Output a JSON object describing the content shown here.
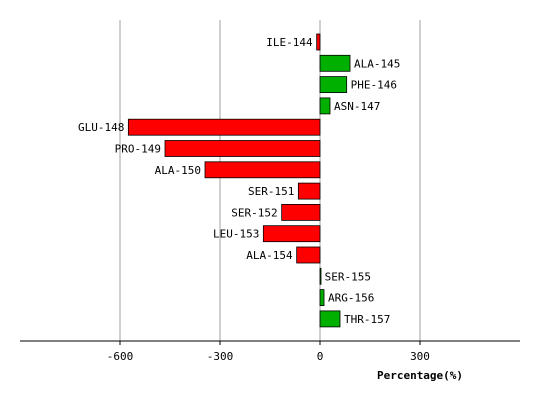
{
  "chart_data": {
    "type": "bar",
    "orientation": "horizontal",
    "title": "",
    "xlabel": "Percentage(%)",
    "ylabel": "",
    "xlim": [
      -900,
      600
    ],
    "xticks": [
      -600,
      -300,
      0,
      300
    ],
    "xtick_labels": [
      "-600",
      "-300",
      "0",
      "300"
    ],
    "grid": true,
    "categories": [
      "ILE-144",
      "ALA-145",
      "PHE-146",
      "ASN-147",
      "GLU-148",
      "PRO-149",
      "ALA-150",
      "SER-151",
      "SER-152",
      "LEU-153",
      "ALA-154",
      "SER-155",
      "ARG-156",
      "THR-157"
    ],
    "values": [
      -10,
      90,
      80,
      30,
      -575,
      -465,
      -345,
      -65,
      -115,
      -170,
      -70,
      2,
      12,
      60
    ],
    "colors": {
      "positive": "#00b000",
      "negative": "#ff0000",
      "outline": "#000000",
      "grid": "#a0a0a0"
    }
  }
}
